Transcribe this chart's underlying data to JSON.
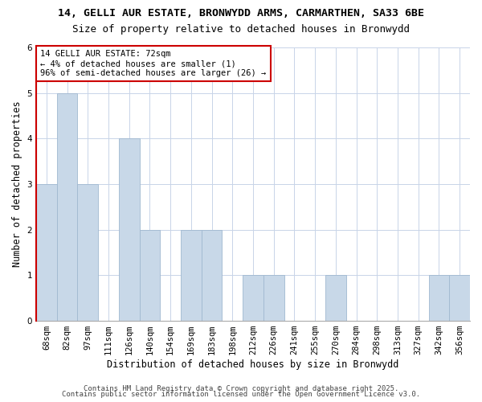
{
  "title_line1": "14, GELLI AUR ESTATE, BRONWYDD ARMS, CARMARTHEN, SA33 6BE",
  "title_line2": "Size of property relative to detached houses in Bronwydd",
  "xlabel": "Distribution of detached houses by size in Bronwydd",
  "ylabel": "Number of detached properties",
  "bins": [
    "68sqm",
    "82sqm",
    "97sqm",
    "111sqm",
    "126sqm",
    "140sqm",
    "154sqm",
    "169sqm",
    "183sqm",
    "198sqm",
    "212sqm",
    "226sqm",
    "241sqm",
    "255sqm",
    "270sqm",
    "284sqm",
    "298sqm",
    "313sqm",
    "327sqm",
    "342sqm",
    "356sqm"
  ],
  "values": [
    3,
    5,
    3,
    0,
    4,
    2,
    0,
    2,
    2,
    0,
    1,
    1,
    0,
    0,
    1,
    0,
    0,
    0,
    0,
    1,
    1
  ],
  "bar_color": "#c8d8e8",
  "bar_edge_color": "#a0b8d0",
  "highlight_color": "#cc0000",
  "annotation_title": "14 GELLI AUR ESTATE: 72sqm",
  "annotation_line2": "← 4% of detached houses are smaller (1)",
  "annotation_line3": "96% of semi-detached houses are larger (26) →",
  "annotation_box_color": "#ffffff",
  "annotation_border_color": "#cc0000",
  "ylim": [
    0,
    6
  ],
  "yticks": [
    0,
    1,
    2,
    3,
    4,
    5,
    6
  ],
  "footer_line1": "Contains HM Land Registry data © Crown copyright and database right 2025.",
  "footer_line2": "Contains public sector information licensed under the Open Government Licence v3.0.",
  "background_color": "#ffffff",
  "grid_color": "#c8d4e8",
  "title_fontsize": 9.5,
  "subtitle_fontsize": 9,
  "axis_label_fontsize": 8.5,
  "tick_fontsize": 7.5,
  "footer_fontsize": 6.5,
  "annotation_fontsize": 7.5
}
